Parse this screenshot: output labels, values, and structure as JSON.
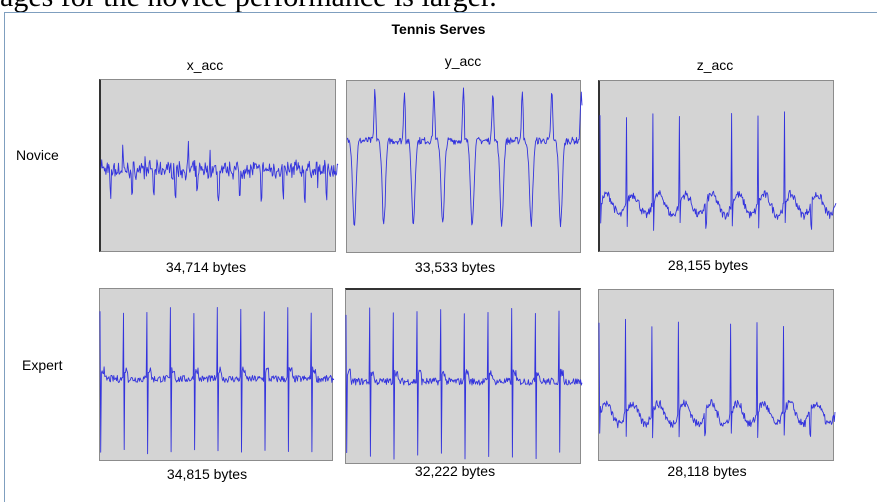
{
  "header_text": "ages for the novice performance is larger.",
  "chart_data": {
    "type": "line",
    "title": "Tennis Serves",
    "columns": [
      "x_acc",
      "y_acc",
      "z_acc"
    ],
    "rows": [
      "Novice",
      "Expert"
    ],
    "line_color": "#3333dd",
    "background": "#d4d4d4",
    "grid": false,
    "panels": [
      {
        "row": "Novice",
        "axis": "x_acc",
        "size_label": "34,714 bytes",
        "peaks": 11,
        "pattern": "noisy-baseline"
      },
      {
        "row": "Novice",
        "axis": "y_acc",
        "size_label": "33,533 bytes",
        "peaks": 8,
        "pattern": "deep-dips"
      },
      {
        "row": "Novice",
        "axis": "z_acc",
        "size_label": "28,155 bytes",
        "peaks": 9,
        "pattern": "spikes-up"
      },
      {
        "row": "Expert",
        "axis": "x_acc",
        "size_label": "34,815 bytes",
        "peaks": 10,
        "pattern": "spikes-both"
      },
      {
        "row": "Expert",
        "axis": "y_acc",
        "size_label": "32,222 bytes",
        "peaks": 10,
        "pattern": "spikes-both"
      },
      {
        "row": "Expert",
        "axis": "z_acc",
        "size_label": "28,118 bytes",
        "peaks": 9,
        "pattern": "spikes-up"
      }
    ]
  }
}
